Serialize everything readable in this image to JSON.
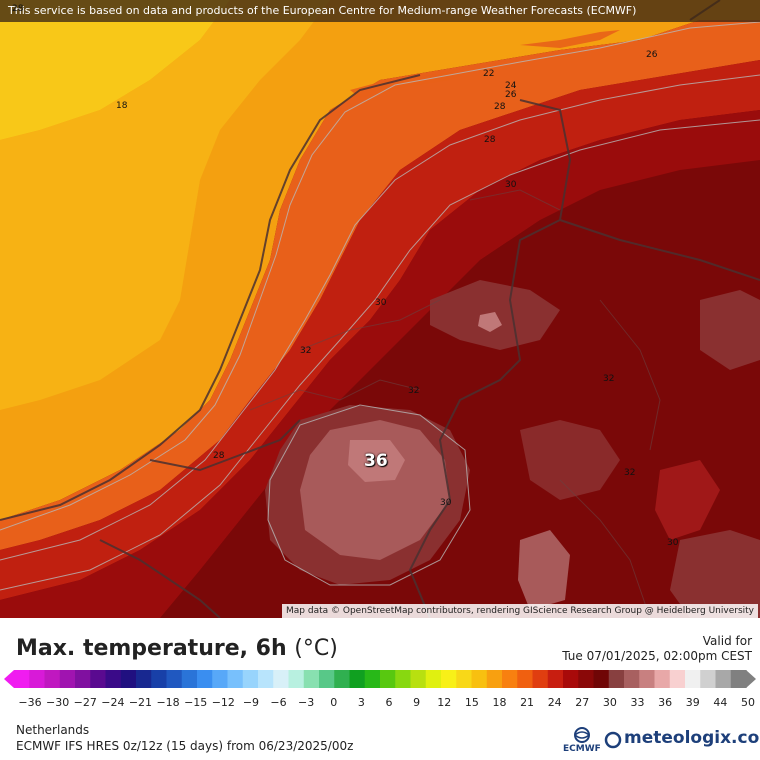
{
  "header": {
    "disclaimer": "This service is based on data and products of the European Centre for Medium-range Weather Forecasts (ECMWF)"
  },
  "map": {
    "attribution": "Map data © OpenStreetMap contributors, rendering GIScience Research Group @ Heidelberg University",
    "contour_labels": [
      "18",
      "22",
      "24",
      "26",
      "28",
      "26",
      "28",
      "30",
      "30",
      "32",
      "32",
      "32",
      "28",
      "32",
      "30",
      "30",
      "28"
    ],
    "max_label": "36"
  },
  "legend": {
    "title": "Max. temperature, 6h",
    "unit": "(°C)",
    "valid_label": "Valid for",
    "valid_date": "Tue 07/01/2025, 02:00pm CEST",
    "ticks": [
      "−36",
      "−30",
      "−27",
      "−24",
      "−21",
      "−18",
      "−15",
      "−12",
      "−9",
      "−6",
      "−3",
      "0",
      "3",
      "6",
      "9",
      "12",
      "15",
      "18",
      "21",
      "24",
      "27",
      "30",
      "33",
      "36",
      "39",
      "44",
      "50"
    ],
    "tick_values": [
      -36,
      -30,
      -27,
      -24,
      -21,
      -18,
      -15,
      -12,
      -9,
      -6,
      -3,
      0,
      3,
      6,
      9,
      12,
      15,
      18,
      21,
      24,
      27,
      30,
      33,
      36,
      39,
      44,
      50
    ],
    "colors": [
      "#f01cf0",
      "#d81ad8",
      "#c018c0",
      "#a014b0",
      "#8010a0",
      "#5a0a90",
      "#3a0a88",
      "#201080",
      "#182890",
      "#1840a8",
      "#2058c0",
      "#2a74d8",
      "#3a8ef0",
      "#58a8f8",
      "#78c0fc",
      "#98d4fc",
      "#b8e4fc",
      "#d8f0f8",
      "#b8f0e0",
      "#88e0b0",
      "#58c888",
      "#30b050",
      "#10a020",
      "#28b818",
      "#58c810",
      "#88d810",
      "#b8e010",
      "#e0f010",
      "#f8f018",
      "#f8d818",
      "#f8c010",
      "#f8a010",
      "#f88010",
      "#f06010",
      "#e03e10",
      "#c81e10",
      "#a80a0a",
      "#8a0808",
      "#700606",
      "#884040",
      "#a86060",
      "#c88080",
      "#e8a8a8",
      "#f8d0d0",
      "#f0f0f0",
      "#d0d0d0",
      "#a8a8a8",
      "#808080"
    ]
  },
  "footer": {
    "region": "Netherlands",
    "model": "ECMWF IFS HRES 0z/12z (15 days) from 06/23/2025/00z",
    "ecmwf_logo_text": "ECMWF",
    "brand": "meteologix.com"
  }
}
